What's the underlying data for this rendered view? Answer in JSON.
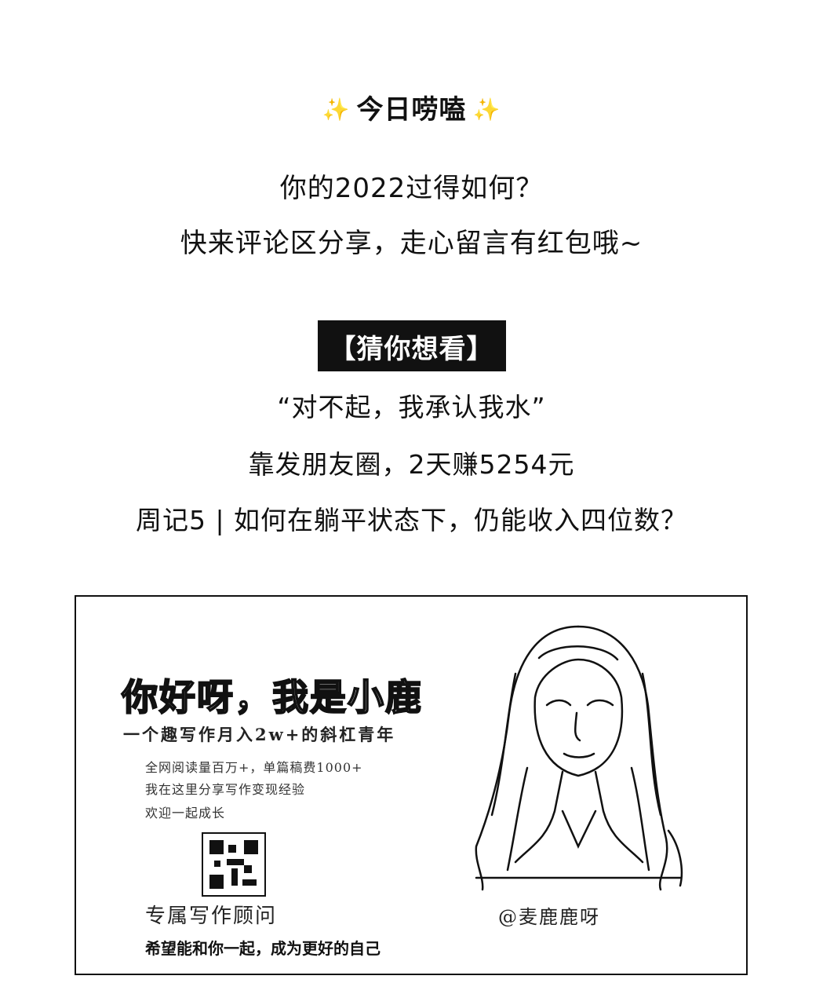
{
  "header": {
    "sparkle_left": "✨",
    "title": "今日唠嗑",
    "sparkle_right": "✨"
  },
  "prompt": {
    "line1": "你的2022过得如何？",
    "line2": "快来评论区分享，走心留言有红包哦~"
  },
  "recommend": {
    "badge": "【猜你想看】",
    "items": [
      "“对不起，我承认我水”",
      "靠发朋友圈，2天赚5254元",
      "周记5 | 如何在躺平状态下，仍能收入四位数？"
    ]
  },
  "card": {
    "title": "你好呀，我是小鹿",
    "subtitle": "一个趣写作月入2w+的斜杠青年",
    "desc": [
      "全网阅读量百万+，单篇稿费1000+",
      "我在这里分享写作变现经验",
      "欢迎一起成长"
    ],
    "tag": "专属写作顾问",
    "motto": "希望能和你一起，成为更好的自己",
    "handle": "@麦鹿鹿呀"
  }
}
